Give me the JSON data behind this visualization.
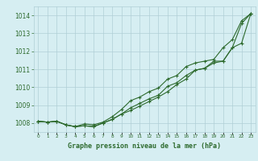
{
  "title": "Graphe pression niveau de la mer (hPa)",
  "xlabel_hours": [
    0,
    1,
    2,
    3,
    4,
    5,
    6,
    7,
    8,
    9,
    10,
    11,
    12,
    13,
    14,
    15,
    16,
    17,
    18,
    19,
    20,
    21,
    22,
    23
  ],
  "ylim": [
    1007.5,
    1014.5
  ],
  "yticks": [
    1008,
    1009,
    1010,
    1011,
    1012,
    1013,
    1014
  ],
  "xlim": [
    -0.5,
    23.5
  ],
  "line1": [
    1008.1,
    1008.05,
    1008.1,
    1007.9,
    1007.8,
    1007.85,
    1007.8,
    1008.0,
    1008.2,
    1008.5,
    1008.85,
    1009.1,
    1009.35,
    1009.55,
    1010.05,
    1010.25,
    1010.65,
    1010.95,
    1011.05,
    1011.35,
    1011.45,
    1012.2,
    1013.55,
    1014.1
  ],
  "line2": [
    1008.1,
    1008.05,
    1008.1,
    1007.9,
    1007.8,
    1007.95,
    1007.9,
    1008.05,
    1008.35,
    1008.75,
    1009.25,
    1009.45,
    1009.75,
    1009.95,
    1010.45,
    1010.65,
    1011.15,
    1011.35,
    1011.45,
    1011.55,
    1012.2,
    1012.65,
    1013.7,
    1014.1
  ],
  "line3": [
    1008.1,
    1008.05,
    1008.1,
    1007.9,
    1007.8,
    1007.85,
    1007.8,
    1008.0,
    1008.2,
    1008.5,
    1008.7,
    1008.95,
    1009.2,
    1009.45,
    1009.75,
    1010.15,
    1010.45,
    1010.95,
    1011.05,
    1011.45,
    1011.45,
    1012.2,
    1012.45,
    1014.1
  ],
  "line_color": "#2d6a2d",
  "bg_color": "#d6eef2",
  "grid_color": "#b0cfd6",
  "label_color": "#2d6a2d",
  "title_color": "#2d6a2d"
}
